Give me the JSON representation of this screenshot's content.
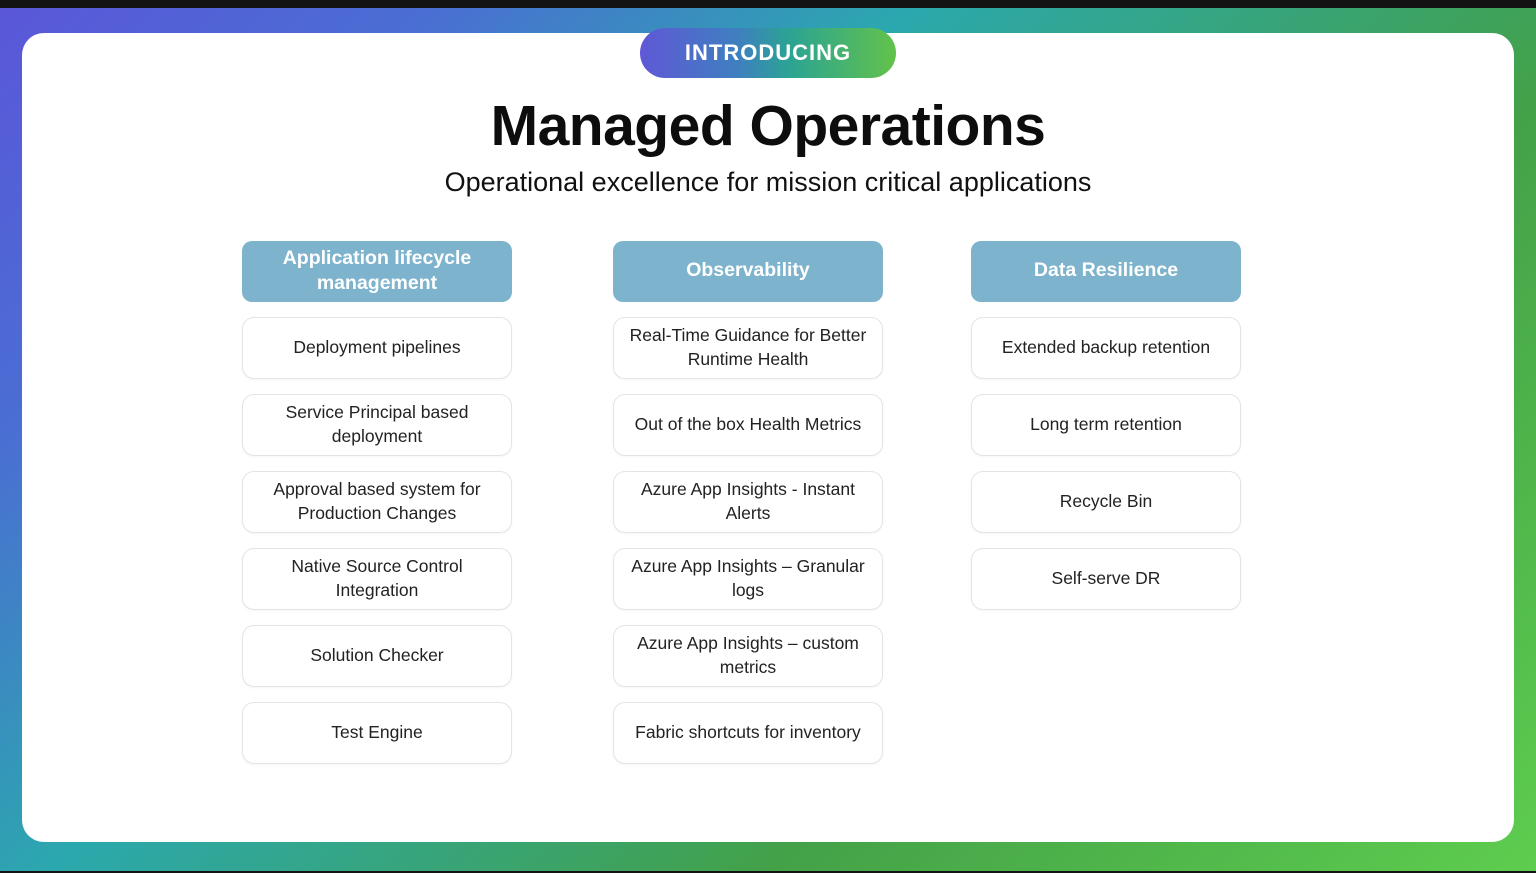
{
  "badge": {
    "label": "INTRODUCING"
  },
  "header": {
    "title": "Managed Operations",
    "subtitle": "Operational excellence for mission critical applications"
  },
  "colors": {
    "column_header_bg": "#7db3cd",
    "frame_gradient_purple": "#5a57d9",
    "frame_gradient_teal": "#2ba8ae",
    "frame_gradient_green_dark": "#43a148",
    "frame_gradient_green_light": "#5ecd4e",
    "pill_gradient_left": "#5f58d6",
    "pill_gradient_right": "#62c24a",
    "card_bg": "#ffffff",
    "item_border": "#e4e4e4",
    "item_text": "#222222"
  },
  "columns": [
    {
      "header": "Application lifecycle management",
      "items": [
        "Deployment pipelines",
        "Service Principal based deployment",
        "Approval based system for Production Changes",
        "Native Source Control Integration",
        "Solution Checker",
        "Test Engine"
      ]
    },
    {
      "header": "Observability",
      "items": [
        "Real-Time Guidance for Better Runtime Health",
        "Out of the box Health Metrics",
        "Azure App Insights - Instant Alerts",
        "Azure App Insights – Granular logs",
        "Azure App Insights – custom metrics",
        "Fabric shortcuts for inventory"
      ]
    },
    {
      "header": "Data Resilience",
      "items": [
        "Extended backup retention",
        "Long term retention",
        "Recycle Bin",
        "Self-serve DR"
      ]
    }
  ]
}
